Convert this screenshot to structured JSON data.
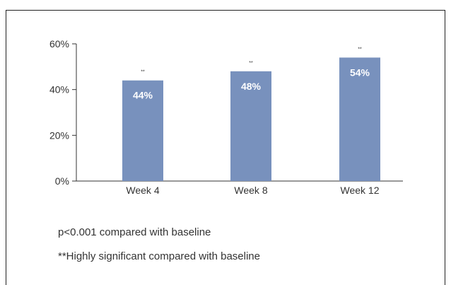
{
  "chart_data": {
    "type": "bar",
    "categories": [
      "Week 4",
      "Week 8",
      "Week 12"
    ],
    "values": [
      44,
      48,
      54
    ],
    "value_labels": [
      "44%",
      "48%",
      "54%"
    ],
    "significance_marks": [
      "**",
      "**",
      "**"
    ],
    "y_ticks": [
      "0%",
      "20%",
      "40%",
      "60%"
    ],
    "ylim": [
      0,
      60
    ],
    "bar_color": "#7891bd",
    "grid": false
  },
  "footnotes": [
    "p<0.001 compared with baseline",
    "**Highly significant compared with baseline"
  ]
}
